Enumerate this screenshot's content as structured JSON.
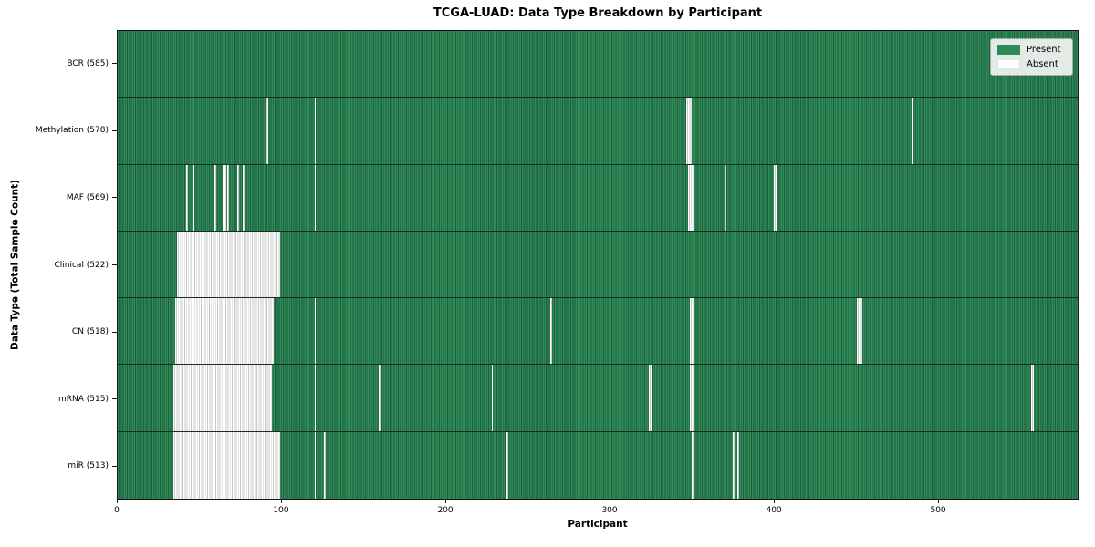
{
  "legend": {
    "present": "Present",
    "absent": "Absent"
  },
  "chart_data": {
    "type": "heatmap",
    "title": "TCGA-LUAD: Data Type Breakdown by Participant",
    "xlabel": "Participant",
    "ylabel": "Data Type (Total Sample Count)",
    "x_ticks": [
      0,
      100,
      200,
      300,
      400,
      500
    ],
    "xlim": [
      0,
      585.5
    ],
    "total_participants": 585,
    "grid": false,
    "legend_entries": [
      "Present",
      "Absent"
    ],
    "legend_position": "upper right",
    "colors": {
      "present": "#2e8b57",
      "present_edge": "#1f5f3d",
      "absent": "#ffffff",
      "absent_edge": "#c8c8c8"
    },
    "rows": [
      {
        "key": "bcr",
        "label": "BCR (585)",
        "count": 585,
        "absent_segments": []
      },
      {
        "key": "methylation",
        "label": "Methylation (578)",
        "count": 578,
        "absent_segments": [
          [
            90,
            91
          ],
          [
            120,
            120
          ],
          [
            347,
            349
          ],
          [
            484,
            484
          ]
        ]
      },
      {
        "key": "maf",
        "label": "MAF (569)",
        "count": 569,
        "absent_segments": [
          [
            42,
            42
          ],
          [
            46,
            46
          ],
          [
            59,
            59
          ],
          [
            64,
            65
          ],
          [
            67,
            67
          ],
          [
            73,
            73
          ],
          [
            76,
            77
          ],
          [
            120,
            120
          ],
          [
            348,
            350
          ],
          [
            370,
            370
          ],
          [
            400,
            401
          ]
        ]
      },
      {
        "key": "clinical",
        "label": "Clinical (522)",
        "count": 522,
        "absent_segments": [
          [
            36,
            98
          ]
        ]
      },
      {
        "key": "cn",
        "label": "CN (518)",
        "count": 518,
        "absent_segments": [
          [
            35,
            94
          ],
          [
            120,
            120
          ],
          [
            264,
            264
          ],
          [
            349,
            350
          ],
          [
            451,
            453
          ]
        ]
      },
      {
        "key": "mrna",
        "label": "mRNA (515)",
        "count": 515,
        "absent_segments": [
          [
            34,
            93
          ],
          [
            120,
            120
          ],
          [
            159,
            160
          ],
          [
            228,
            228
          ],
          [
            324,
            325
          ],
          [
            349,
            350
          ],
          [
            557,
            558
          ]
        ]
      },
      {
        "key": "mir",
        "label": "miR (513)",
        "count": 513,
        "absent_segments": [
          [
            34,
            98
          ],
          [
            120,
            120
          ],
          [
            126,
            126
          ],
          [
            237,
            237
          ],
          [
            350,
            350
          ],
          [
            375,
            376
          ],
          [
            378,
            378
          ]
        ]
      }
    ]
  }
}
